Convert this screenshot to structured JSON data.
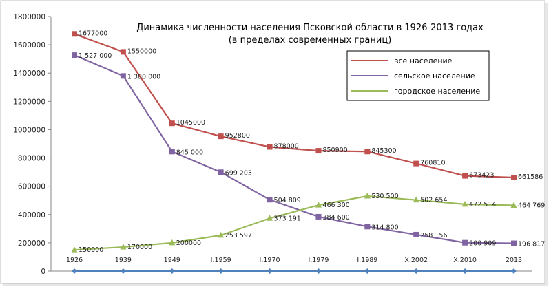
{
  "chart_data": {
    "type": "line",
    "title": "Динамика численности населения Псковской области в 1926-2013 годах",
    "subtitle": "(в пределах современных границ)",
    "categories": [
      "1926",
      "1939",
      "1949",
      "I.1959",
      "I.1970",
      "I.1979",
      "I.1989",
      "X.2002",
      "X.2010",
      "2013"
    ],
    "ylim": [
      0,
      1800000
    ],
    "yticks": [
      "0",
      "200000",
      "400000",
      "600000",
      "800000",
      "1000000",
      "1200000",
      "1400000",
      "1600000",
      "1800000"
    ],
    "grid": false,
    "legend_position": "top-right",
    "series": [
      {
        "name": "всё население",
        "color": "#C0504D",
        "marker": "square",
        "values": [
          1677000,
          1550000,
          1045000,
          952800,
          878000,
          850900,
          845300,
          760810,
          673423,
          661586
        ],
        "labels": [
          "1677000",
          "1550000",
          "1045000",
          "952800",
          "878000",
          "850900",
          "845300",
          "760810",
          "673423",
          "661586"
        ]
      },
      {
        "name": "сельское население",
        "color": "#8064A2",
        "marker": "square",
        "values": [
          1527000,
          1380000,
          845000,
          699203,
          504809,
          384600,
          314800,
          258156,
          200909,
          196817
        ],
        "labels": [
          "1 527 000",
          "1 380 000",
          "845 000",
          "699 203",
          "504 809",
          "384 600",
          "314 800",
          "258 156",
          "200 909",
          "196 817"
        ]
      },
      {
        "name": "городское население",
        "color": "#9BBB59",
        "marker": "triangle",
        "values": [
          150000,
          170000,
          200000,
          253597,
          373191,
          466300,
          530500,
          502654,
          472514,
          464769
        ],
        "labels": [
          "150000",
          "170000",
          "200000",
          "253 597",
          "373 191",
          "466 300",
          "530 500",
          "502 654",
          "472 514",
          "464 769"
        ]
      },
      {
        "color": "#4F81BD",
        "marker": "diamond",
        "values": [
          0,
          0,
          0,
          0,
          0,
          0,
          0,
          0,
          0,
          0
        ]
      }
    ]
  }
}
